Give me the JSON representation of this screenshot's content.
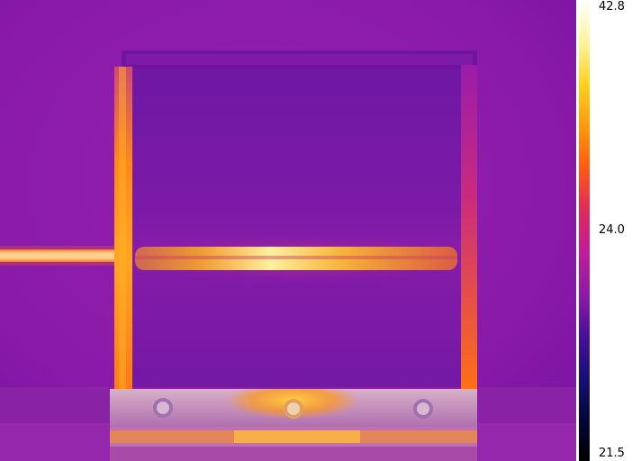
{
  "temperature_scale": {
    "max_label": "42.8",
    "mid_label": "24.0",
    "min_label": "21.5",
    "palette": [
      "#ffffff",
      "#fff4a0",
      "#ffd21e",
      "#ff9a0a",
      "#ff5a10",
      "#e02a5a",
      "#c21c9a",
      "#8f1aa8",
      "#4a0f9a",
      "#16107a",
      "#04063a",
      "#000000"
    ]
  },
  "scene_colors": {
    "background": "#8a1aa8",
    "panel_interior": "#7a1aa6",
    "frame_hot": "#ff9a14",
    "beam_hot": "#ffe27a",
    "base_block": "#c8a0c0"
  }
}
